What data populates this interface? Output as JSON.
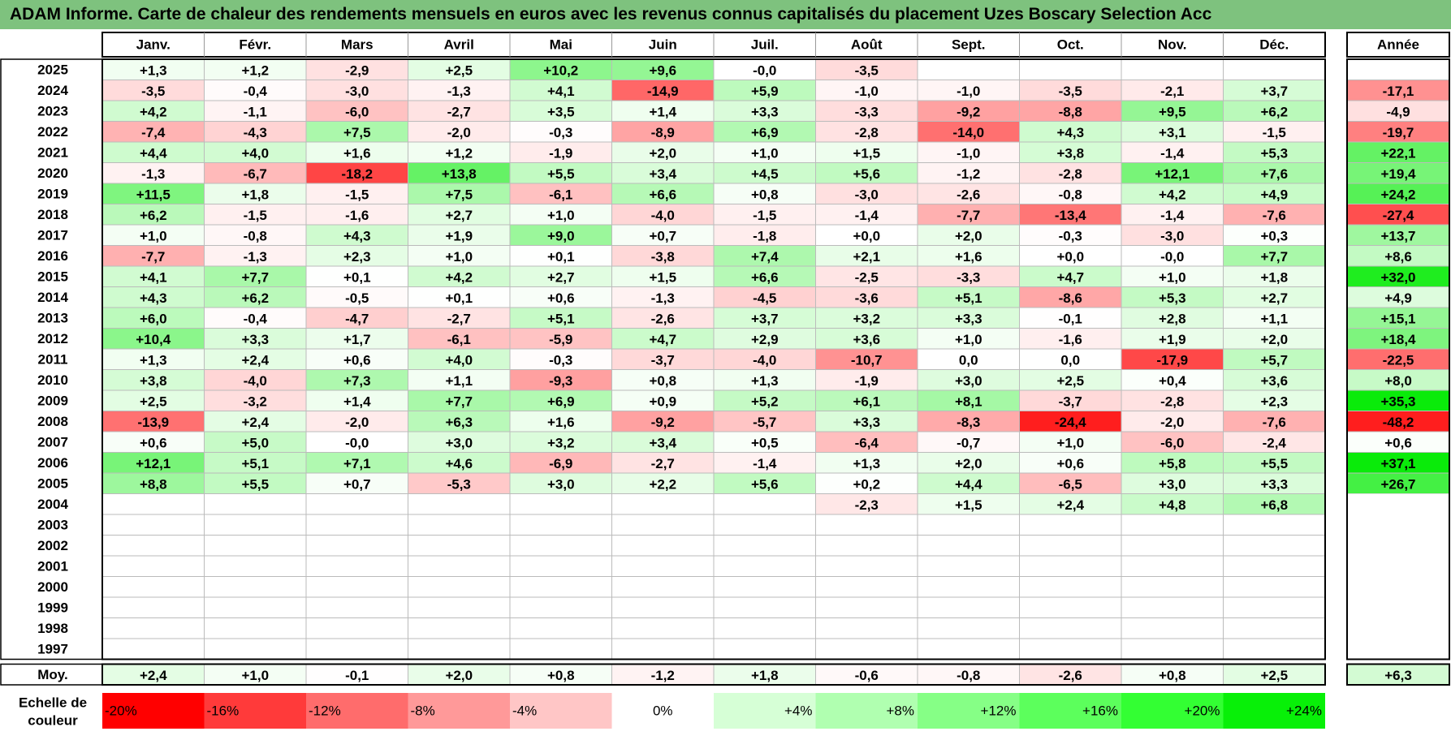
{
  "title": "ADAM Informe. Carte de chaleur des rendements mensuels en euros avec les revenus connus capitalisés du placement Uzes Boscary Selection Acc",
  "chart_data": {
    "type": "heatmap",
    "months": [
      "Janv.",
      "Févr.",
      "Mars",
      "Avril",
      "Mai",
      "Juin",
      "Juil.",
      "Août",
      "Sept.",
      "Oct.",
      "Nov.",
      "Déc."
    ],
    "annual_header": "Année",
    "rows": [
      {
        "year": "2025",
        "values": [
          "+1,3",
          "+1,2",
          "-2,9",
          "+2,5",
          "+10,2",
          "+9,6",
          "-0,0",
          "-3,5",
          "",
          "",
          "",
          ""
        ],
        "annual": ""
      },
      {
        "year": "2024",
        "values": [
          "-3,5",
          "-0,4",
          "-3,0",
          "-1,3",
          "+4,1",
          "-14,9",
          "+5,9",
          "-1,0",
          "-1,0",
          "-3,5",
          "-2,1",
          "+3,7"
        ],
        "annual": "-17,1"
      },
      {
        "year": "2023",
        "values": [
          "+4,2",
          "-1,1",
          "-6,0",
          "-2,7",
          "+3,5",
          "+1,4",
          "+3,3",
          "-3,3",
          "-9,2",
          "-8,8",
          "+9,5",
          "+6,2"
        ],
        "annual": "-4,9"
      },
      {
        "year": "2022",
        "values": [
          "-7,4",
          "-4,3",
          "+7,5",
          "-2,0",
          "-0,3",
          "-8,9",
          "+6,9",
          "-2,8",
          "-14,0",
          "+4,3",
          "+3,1",
          "-1,5"
        ],
        "annual": "-19,7"
      },
      {
        "year": "2021",
        "values": [
          "+4,4",
          "+4,0",
          "+1,6",
          "+1,2",
          "-1,9",
          "+2,0",
          "+1,0",
          "+1,5",
          "-1,0",
          "+3,8",
          "-1,4",
          "+5,3"
        ],
        "annual": "+22,1"
      },
      {
        "year": "2020",
        "values": [
          "-1,3",
          "-6,7",
          "-18,2",
          "+13,8",
          "+5,5",
          "+3,4",
          "+4,5",
          "+5,6",
          "-1,2",
          "-2,8",
          "+12,1",
          "+7,6"
        ],
        "annual": "+19,4"
      },
      {
        "year": "2019",
        "values": [
          "+11,5",
          "+1,8",
          "-1,5",
          "+7,5",
          "-6,1",
          "+6,6",
          "+0,8",
          "-3,0",
          "-2,6",
          "-0,8",
          "+4,2",
          "+4,9"
        ],
        "annual": "+24,2"
      },
      {
        "year": "2018",
        "values": [
          "+6,2",
          "-1,5",
          "-1,6",
          "+2,7",
          "+1,0",
          "-4,0",
          "-1,5",
          "-1,4",
          "-7,7",
          "-13,4",
          "-1,4",
          "-7,6"
        ],
        "annual": "-27,4"
      },
      {
        "year": "2017",
        "values": [
          "+1,0",
          "-0,8",
          "+4,3",
          "+1,9",
          "+9,0",
          "+0,7",
          "-1,8",
          "+0,0",
          "+2,0",
          "-0,3",
          "-3,0",
          "+0,3"
        ],
        "annual": "+13,7"
      },
      {
        "year": "2016",
        "values": [
          "-7,7",
          "-1,3",
          "+2,3",
          "+1,0",
          "+0,1",
          "-3,8",
          "+7,4",
          "+2,1",
          "+1,6",
          "+0,0",
          "-0,0",
          "+7,7"
        ],
        "annual": "+8,6"
      },
      {
        "year": "2015",
        "values": [
          "+4,1",
          "+7,7",
          "+0,1",
          "+4,2",
          "+2,7",
          "+1,5",
          "+6,6",
          "-2,5",
          "-3,3",
          "+4,7",
          "+1,0",
          "+1,8"
        ],
        "annual": "+32,0"
      },
      {
        "year": "2014",
        "values": [
          "+4,3",
          "+6,2",
          "-0,5",
          "+0,1",
          "+0,6",
          "-1,3",
          "-4,5",
          "-3,6",
          "+5,1",
          "-8,6",
          "+5,3",
          "+2,7"
        ],
        "annual": "+4,9"
      },
      {
        "year": "2013",
        "values": [
          "+6,0",
          "-0,4",
          "-4,7",
          "-2,7",
          "+5,1",
          "-2,6",
          "+3,7",
          "+3,2",
          "+3,3",
          "-0,1",
          "+2,8",
          "+1,1"
        ],
        "annual": "+15,1"
      },
      {
        "year": "2012",
        "values": [
          "+10,4",
          "+3,3",
          "+1,7",
          "-6,1",
          "-5,9",
          "+4,7",
          "+2,9",
          "+3,6",
          "+1,0",
          "-1,6",
          "+1,9",
          "+2,0"
        ],
        "annual": "+18,4"
      },
      {
        "year": "2011",
        "values": [
          "+1,3",
          "+2,4",
          "+0,6",
          "+4,0",
          "-0,3",
          "-3,7",
          "-4,0",
          "-10,7",
          "0,0",
          "0,0",
          "-17,9",
          "+5,7"
        ],
        "annual": "-22,5"
      },
      {
        "year": "2010",
        "values": [
          "+3,8",
          "-4,0",
          "+7,3",
          "+1,1",
          "-9,3",
          "+0,8",
          "+1,3",
          "-1,9",
          "+3,0",
          "+2,5",
          "+0,4",
          "+3,6"
        ],
        "annual": "+8,0"
      },
      {
        "year": "2009",
        "values": [
          "+2,5",
          "-3,2",
          "+1,4",
          "+7,7",
          "+6,9",
          "+0,9",
          "+5,2",
          "+6,1",
          "+8,1",
          "-3,7",
          "-2,8",
          "+2,3"
        ],
        "annual": "+35,3"
      },
      {
        "year": "2008",
        "values": [
          "-13,9",
          "+2,4",
          "-2,0",
          "+6,3",
          "+1,6",
          "-9,2",
          "-5,7",
          "+3,3",
          "-8,3",
          "-24,4",
          "-2,0",
          "-7,6"
        ],
        "annual": "-48,2"
      },
      {
        "year": "2007",
        "values": [
          "+0,6",
          "+5,0",
          "-0,0",
          "+3,0",
          "+3,2",
          "+3,4",
          "+0,5",
          "-6,4",
          "-0,7",
          "+1,0",
          "-6,0",
          "-2,4"
        ],
        "annual": "+0,6"
      },
      {
        "year": "2006",
        "values": [
          "+12,1",
          "+5,1",
          "+7,1",
          "+4,6",
          "-6,9",
          "-2,7",
          "-1,4",
          "+1,3",
          "+2,0",
          "+0,6",
          "+5,8",
          "+5,5"
        ],
        "annual": "+37,1"
      },
      {
        "year": "2005",
        "values": [
          "+8,8",
          "+5,5",
          "+0,7",
          "-5,3",
          "+3,0",
          "+2,2",
          "+5,6",
          "+0,2",
          "+4,4",
          "-6,5",
          "+3,0",
          "+3,3"
        ],
        "annual": "+26,7"
      },
      {
        "year": "2004",
        "values": [
          "",
          "",
          "",
          "",
          "",
          "",
          "",
          "-2,3",
          "+1,5",
          "+2,4",
          "+4,8",
          "+6,8"
        ],
        "annual": ""
      },
      {
        "year": "2003",
        "values": [
          "",
          "",
          "",
          "",
          "",
          "",
          "",
          "",
          "",
          "",
          "",
          ""
        ],
        "annual": ""
      },
      {
        "year": "2002",
        "values": [
          "",
          "",
          "",
          "",
          "",
          "",
          "",
          "",
          "",
          "",
          "",
          ""
        ],
        "annual": ""
      },
      {
        "year": "2001",
        "values": [
          "",
          "",
          "",
          "",
          "",
          "",
          "",
          "",
          "",
          "",
          "",
          ""
        ],
        "annual": ""
      },
      {
        "year": "2000",
        "values": [
          "",
          "",
          "",
          "",
          "",
          "",
          "",
          "",
          "",
          "",
          "",
          ""
        ],
        "annual": ""
      },
      {
        "year": "1999",
        "values": [
          "",
          "",
          "",
          "",
          "",
          "",
          "",
          "",
          "",
          "",
          "",
          ""
        ],
        "annual": ""
      },
      {
        "year": "1998",
        "values": [
          "",
          "",
          "",
          "",
          "",
          "",
          "",
          "",
          "",
          "",
          "",
          ""
        ],
        "annual": ""
      },
      {
        "year": "1997",
        "values": [
          "",
          "",
          "",
          "",
          "",
          "",
          "",
          "",
          "",
          "",
          "",
          ""
        ],
        "annual": ""
      }
    ],
    "average": {
      "label": "Moy.",
      "values": [
        "+2,4",
        "+1,0",
        "-0,1",
        "+2,0",
        "+0,8",
        "-1,2",
        "+1,8",
        "-0,6",
        "-0,8",
        "-2,6",
        "+0,8",
        "+2,5"
      ],
      "annual": "+6,3"
    },
    "scale": {
      "label_line1": "Echelle de",
      "label_line2": "couleur",
      "stops": [
        "-20%",
        "-16%",
        "-12%",
        "-8%",
        "-4%",
        "0%",
        "+4%",
        "+8%",
        "+12%",
        "+16%",
        "+20%",
        "+24%"
      ],
      "colors": [
        "#ff0000",
        "#ff3a3a",
        "#ff6c6c",
        "#ff9999",
        "#ffc6c6",
        "#ffffff",
        "#d6ffd6",
        "#b0ffb0",
        "#86ff86",
        "#5cff5c",
        "#33ff33",
        "#08f008"
      ]
    }
  }
}
